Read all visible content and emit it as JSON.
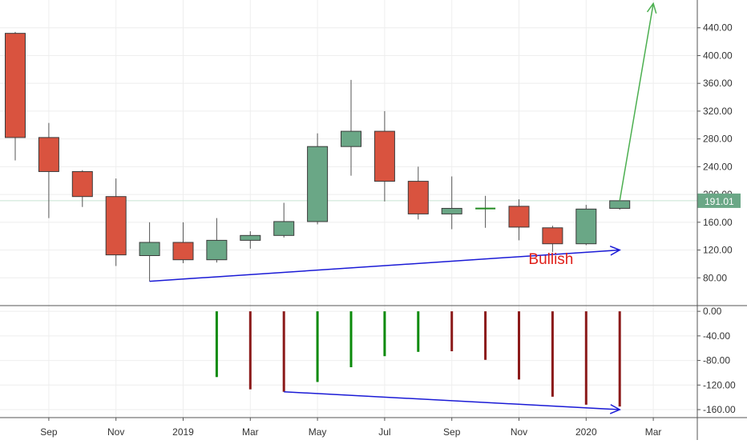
{
  "chart_data": [
    {
      "type": "candlestick",
      "title": "",
      "y_axis_position": "right",
      "ylim": [
        40,
        480
      ],
      "y_ticks": [
        "80.00",
        "120.00",
        "160.00",
        "200.00",
        "240.00",
        "280.00",
        "320.00",
        "360.00",
        "400.00",
        "440.00"
      ],
      "grid": true,
      "last_price_label": "191.01",
      "candles": [
        {
          "month": "2018-08",
          "open": 432,
          "high": 434,
          "low": 249,
          "close": 282
        },
        {
          "month": "2018-09",
          "open": 282,
          "high": 303,
          "low": 166,
          "close": 233
        },
        {
          "month": "2018-10",
          "open": 233,
          "high": 235,
          "low": 182,
          "close": 197
        },
        {
          "month": "2018-11",
          "open": 197,
          "high": 223,
          "low": 97,
          "close": 113
        },
        {
          "month": "2018-12",
          "open": 112,
          "high": 160,
          "low": 75,
          "close": 131
        },
        {
          "month": "2019-01",
          "open": 131,
          "high": 160,
          "low": 101,
          "close": 106
        },
        {
          "month": "2019-02",
          "open": 106,
          "high": 166,
          "low": 102,
          "close": 134
        },
        {
          "month": "2019-03",
          "open": 134,
          "high": 147,
          "low": 122,
          "close": 141
        },
        {
          "month": "2019-04",
          "open": 141,
          "high": 188,
          "low": 138,
          "close": 161
        },
        {
          "month": "2019-05",
          "open": 161,
          "high": 288,
          "low": 157,
          "close": 269
        },
        {
          "month": "2019-06",
          "open": 269,
          "high": 365,
          "low": 227,
          "close": 291
        },
        {
          "month": "2019-07",
          "open": 291,
          "high": 320,
          "low": 190,
          "close": 219
        },
        {
          "month": "2019-08",
          "open": 219,
          "high": 240,
          "low": 164,
          "close": 172
        },
        {
          "month": "2019-09",
          "open": 172,
          "high": 226,
          "low": 150,
          "close": 180
        },
        {
          "month": "2019-10",
          "open": 180,
          "high": 198,
          "low": 152,
          "close": 181
        },
        {
          "month": "2019-11",
          "open": 183,
          "high": 193,
          "low": 134,
          "close": 153
        },
        {
          "month": "2019-12",
          "open": 152,
          "high": 155,
          "low": 117,
          "close": 129
        },
        {
          "month": "2020-01",
          "open": 129,
          "high": 185,
          "low": 127,
          "close": 179
        },
        {
          "month": "2020-02",
          "open": 180,
          "high": 192,
          "low": 178,
          "close": 191
        }
      ],
      "annotations": [
        {
          "kind": "trendline",
          "from": {
            "month": "2018-12",
            "value": 75
          },
          "to": {
            "month": "2020-02",
            "value": 120
          },
          "arrow": true,
          "color": "#1a1ad6"
        },
        {
          "kind": "arrow",
          "from": {
            "month": "2020-02",
            "value": 191
          },
          "to": {
            "month": "2020-03",
            "value": 475
          },
          "color": "#4caf50"
        },
        {
          "kind": "text",
          "text": "Bullish",
          "month": "2019-12",
          "value": 100,
          "color": "#e0201a"
        }
      ],
      "colors": {
        "up": "#6aa786",
        "down": "#d9533f",
        "border": "#3b3b3b",
        "grid": "#eeeeee",
        "last_price": "#6aa786"
      }
    },
    {
      "type": "bar",
      "title": "",
      "y_axis_position": "right",
      "ylim": [
        -173,
        8
      ],
      "y_ticks": [
        "0.00",
        "-40.00",
        "-80.00",
        "-120.00",
        "-160.00"
      ],
      "bars": [
        {
          "month": "2019-02",
          "value": -107,
          "color": "#0a8a0a"
        },
        {
          "month": "2019-03",
          "value": -127,
          "color": "#8b1a1a"
        },
        {
          "month": "2019-04",
          "value": -131,
          "color": "#8b1a1a"
        },
        {
          "month": "2019-05",
          "value": -115,
          "color": "#0a8a0a"
        },
        {
          "month": "2019-06",
          "value": -91,
          "color": "#0a8a0a"
        },
        {
          "month": "2019-07",
          "value": -73,
          "color": "#0a8a0a"
        },
        {
          "month": "2019-08",
          "value": -66,
          "color": "#0a8a0a"
        },
        {
          "month": "2019-09",
          "value": -65,
          "color": "#8b1a1a"
        },
        {
          "month": "2019-10",
          "value": -79,
          "color": "#8b1a1a"
        },
        {
          "month": "2019-11",
          "value": -111,
          "color": "#8b1a1a"
        },
        {
          "month": "2019-12",
          "value": -139,
          "color": "#8b1a1a"
        },
        {
          "month": "2020-01",
          "value": -152,
          "color": "#8b1a1a"
        },
        {
          "month": "2020-02",
          "value": -155,
          "color": "#8b1a1a"
        }
      ],
      "annotations": [
        {
          "kind": "trendline",
          "from": {
            "month": "2019-04",
            "value": -131
          },
          "to": {
            "month": "2020-02",
            "value": -160
          },
          "arrow": true,
          "color": "#1a1ad6"
        }
      ]
    }
  ],
  "x_axis": {
    "ticks": [
      {
        "label": "Sep",
        "month": "2018-09"
      },
      {
        "label": "Nov",
        "month": "2018-11"
      },
      {
        "label": "2019",
        "month": "2019-01"
      },
      {
        "label": "Mar",
        "month": "2019-03"
      },
      {
        "label": "May",
        "month": "2019-05"
      },
      {
        "label": "Jul",
        "month": "2019-07"
      },
      {
        "label": "Sep",
        "month": "2019-09"
      },
      {
        "label": "Nov",
        "month": "2019-11"
      },
      {
        "label": "2020",
        "month": "2020-01"
      },
      {
        "label": "Mar",
        "month": "2020-03"
      }
    ]
  }
}
